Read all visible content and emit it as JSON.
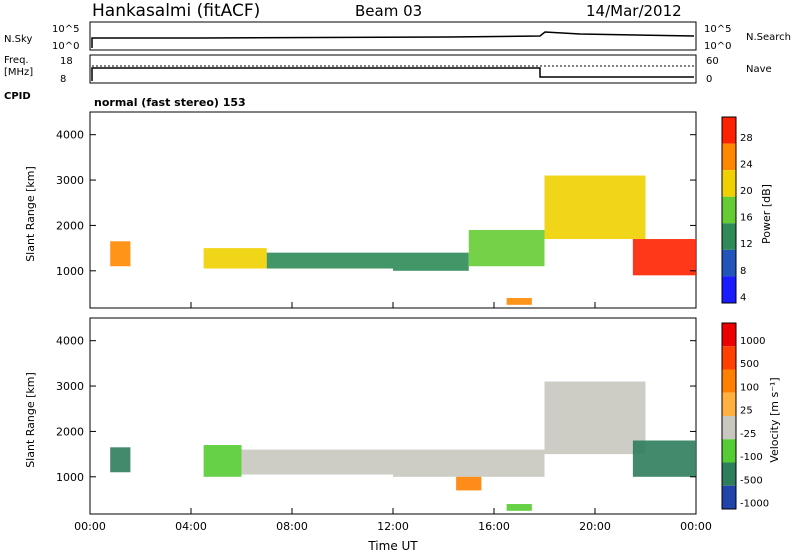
{
  "header": {
    "station": "Hankasalmi (fitACF)",
    "beam": "Beam 03",
    "date": "14/Mar/2012"
  },
  "status_panels": {
    "nsky_label": "N.Sky",
    "nsearch_label": "N.Search",
    "noise_ticks": [
      "10^5",
      "10^0"
    ],
    "freq_label_line1": "Freq.",
    "freq_label_line2": "[MHz]",
    "freq_ticks": [
      "18",
      "8"
    ],
    "nave_label": "Nave",
    "nave_ticks": [
      "60",
      "0"
    ],
    "cpid_label": "CPID",
    "cpid_text": "normal (fast stereo) 153"
  },
  "chart_data": [
    {
      "type": "heatmap",
      "name": "power",
      "xlabel": "Time UT",
      "ylabel": "Slant Range [km]",
      "xlim": [
        0,
        24
      ],
      "ylim": [
        180,
        4500
      ],
      "yticks": [
        1000,
        2000,
        3000,
        4000
      ],
      "colorbar_label": "Power [dB]",
      "colorbar_ticks": [
        "28",
        "24",
        "20",
        "16",
        "12",
        "8",
        "4"
      ],
      "colors": [
        "#1a1aff",
        "#2255bb",
        "#2e8b57",
        "#66cc33",
        "#f0d000",
        "#ff8800",
        "#ff2200"
      ],
      "bands": [
        {
          "t": [
            0.8,
            1.6
          ],
          "r": [
            1100,
            1650
          ],
          "level": 5
        },
        {
          "t": [
            4.5,
            7.0
          ],
          "r": [
            1050,
            1500
          ],
          "level": 4
        },
        {
          "t": [
            7.0,
            12.0
          ],
          "r": [
            1050,
            1400
          ],
          "level": 2
        },
        {
          "t": [
            12.0,
            15.0
          ],
          "r": [
            1000,
            1400
          ],
          "level": 2
        },
        {
          "t": [
            15.0,
            18.0
          ],
          "r": [
            1100,
            1900
          ],
          "level": 3
        },
        {
          "t": [
            18.0,
            22.0
          ],
          "r": [
            1700,
            3100
          ],
          "level": 4
        },
        {
          "t": [
            21.5,
            24.0
          ],
          "r": [
            900,
            1700
          ],
          "level": 6
        },
        {
          "t": [
            16.5,
            17.5
          ],
          "r": [
            250,
            400
          ],
          "level": 5
        }
      ]
    },
    {
      "type": "heatmap",
      "name": "velocity",
      "xlabel": "Time UT",
      "ylabel": "Slant Range [km]",
      "xlim": [
        0,
        24
      ],
      "ylim": [
        180,
        4500
      ],
      "yticks": [
        1000,
        2000,
        3000,
        4000
      ],
      "xticks": [
        "00:00",
        "04:00",
        "08:00",
        "12:00",
        "16:00",
        "20:00",
        "00:00"
      ],
      "colorbar_label": "Velocity [m s⁻¹]",
      "colorbar_ticks": [
        "1000",
        "500",
        "100",
        "25",
        "-25",
        "-100",
        "-500",
        "-1000"
      ],
      "colors": [
        "#2244aa",
        "#2e7d5b",
        "#55cc33",
        "#c8c8c0",
        "#ffb040",
        "#ff8000",
        "#ff4000",
        "#ee0000"
      ],
      "bands": [
        {
          "t": [
            0.8,
            1.6
          ],
          "r": [
            1100,
            1650
          ],
          "level": 1
        },
        {
          "t": [
            4.5,
            6.0
          ],
          "r": [
            1000,
            1700
          ],
          "level": 2
        },
        {
          "t": [
            6.0,
            12.0
          ],
          "r": [
            1050,
            1600
          ],
          "level": 3
        },
        {
          "t": [
            12.0,
            18.0
          ],
          "r": [
            1000,
            1600
          ],
          "level": 3
        },
        {
          "t": [
            14.5,
            15.5
          ],
          "r": [
            700,
            1000
          ],
          "level": 5
        },
        {
          "t": [
            18.0,
            22.0
          ],
          "r": [
            1500,
            3100
          ],
          "level": 3
        },
        {
          "t": [
            21.5,
            24.0
          ],
          "r": [
            1000,
            1800
          ],
          "level": 1
        },
        {
          "t": [
            16.5,
            17.5
          ],
          "r": [
            250,
            400
          ],
          "level": 2
        }
      ]
    }
  ]
}
